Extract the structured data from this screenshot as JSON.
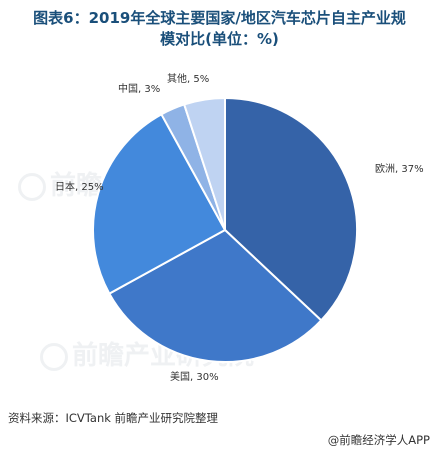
{
  "title_line1": "图表6：2019年全球主要国家/地区汽车芯片自主产业规",
  "title_line2": "模对比(单位：%)",
  "source": "资料来源：ICVTank 前瞻产业研究院整理",
  "brand": "@前瞻经济学人APP",
  "watermark": "前瞻产业研究院",
  "chart_data": {
    "type": "pie",
    "slices": [
      {
        "name": "欧洲",
        "value": 37,
        "label": "欧洲, 37%",
        "color": "#3563a8"
      },
      {
        "name": "美国",
        "value": 30,
        "label": "美国, 30%",
        "color": "#3f78c9"
      },
      {
        "name": "日本",
        "value": 25,
        "label": "日本, 25%",
        "color": "#4389dc"
      },
      {
        "name": "中国",
        "value": 3,
        "label": "中国, 3%",
        "color": "#8fb3e6"
      },
      {
        "name": "其他",
        "value": 5,
        "label": "其他, 5%",
        "color": "#bfd3f2"
      }
    ],
    "start_angle_deg": 0,
    "direction": "clockwise",
    "legend": "none"
  }
}
